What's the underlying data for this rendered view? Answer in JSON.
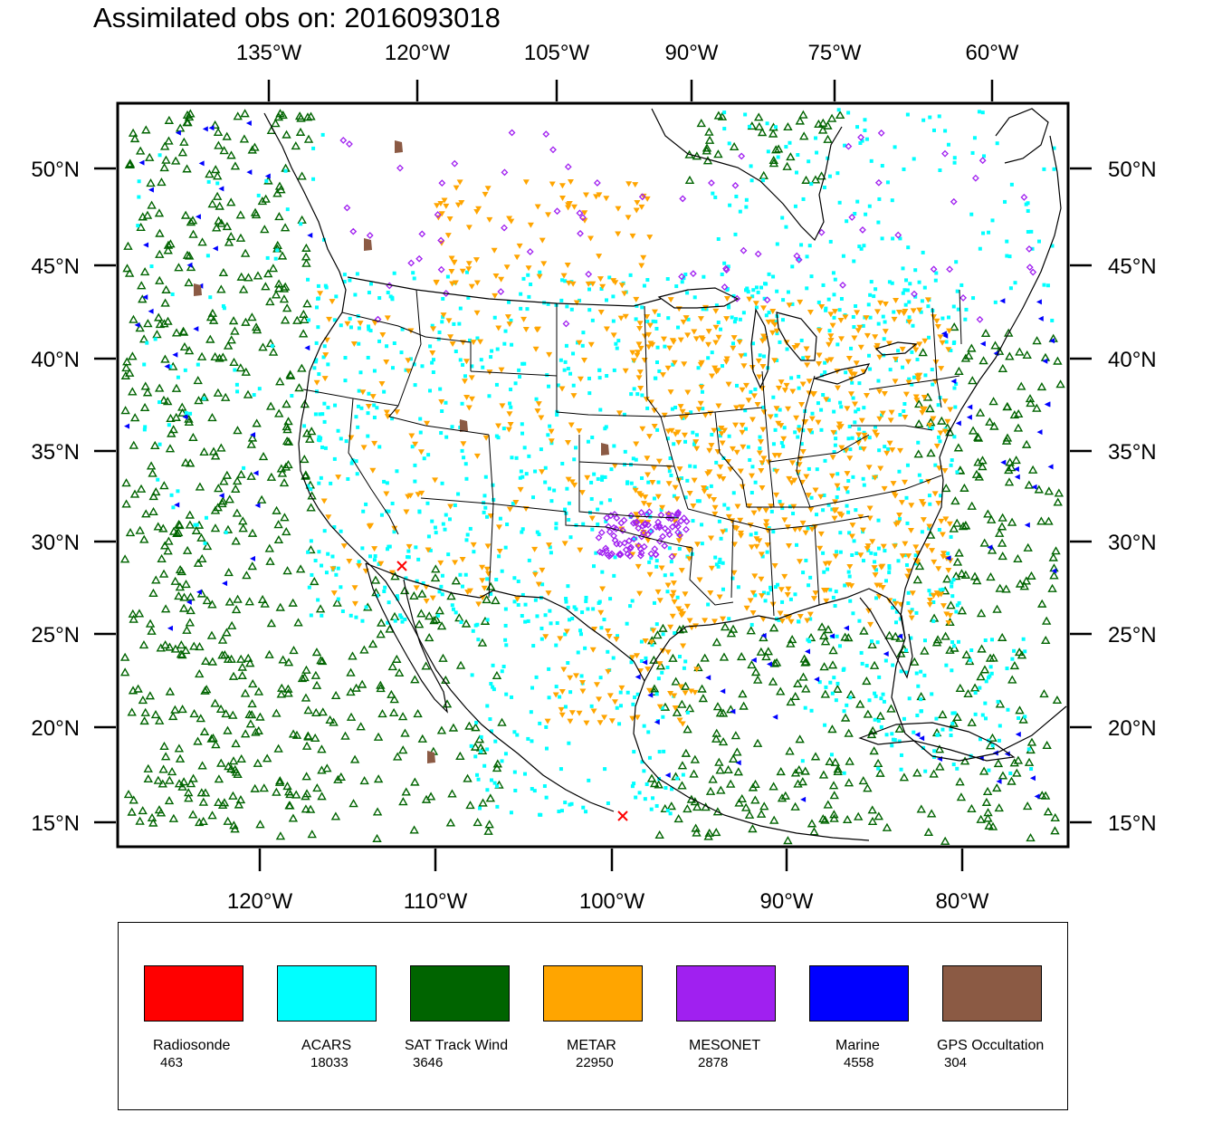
{
  "title": "Assimilated obs on: 2016093018",
  "top_axis_labels": [
    "135°W",
    "120°W",
    "105°W",
    "90°W",
    "75°W",
    "60°W"
  ],
  "bottom_axis_labels": [
    "120°W",
    "110°W",
    "100°W",
    "90°W",
    "80°W"
  ],
  "left_axis_labels": [
    "50°N",
    "45°N",
    "40°N",
    "35°N",
    "30°N",
    "25°N",
    "20°N",
    "15°N"
  ],
  "right_axis_labels": [
    "50°N",
    "45°N",
    "40°N",
    "35°N",
    "30°N",
    "25°N",
    "20°N",
    "15°N"
  ],
  "legend": [
    {
      "name": "Radiosonde",
      "count": "463",
      "color": "#ff0000"
    },
    {
      "name": "ACARS",
      "count": "18033",
      "color": "#00ffff"
    },
    {
      "name": "SAT Track Wind",
      "count": "3646",
      "color": "#006400"
    },
    {
      "name": "METAR",
      "count": "22950",
      "color": "#ffa500"
    },
    {
      "name": "MESONET",
      "count": "2878",
      "color": "#a020f0"
    },
    {
      "name": "Marine",
      "count": "4558",
      "color": "#0000ff"
    },
    {
      "name": "GPS Occultation",
      "count": "304",
      "color": "#8b5a44"
    }
  ]
}
